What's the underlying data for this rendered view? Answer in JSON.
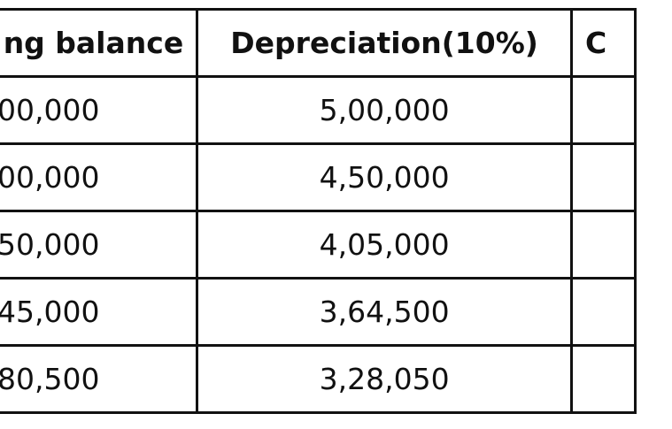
{
  "table": {
    "headers": [
      "ng balance",
      "Depreciation(10%)",
      "C"
    ],
    "rows": [
      [
        "00,000",
        "5,00,000",
        ""
      ],
      [
        "00,000",
        "4,50,000",
        ""
      ],
      [
        "50,000",
        "4,05,000",
        ""
      ],
      [
        "45,000",
        "3,64,500",
        ""
      ],
      [
        "80,500",
        "3,28,050",
        ""
      ]
    ]
  }
}
